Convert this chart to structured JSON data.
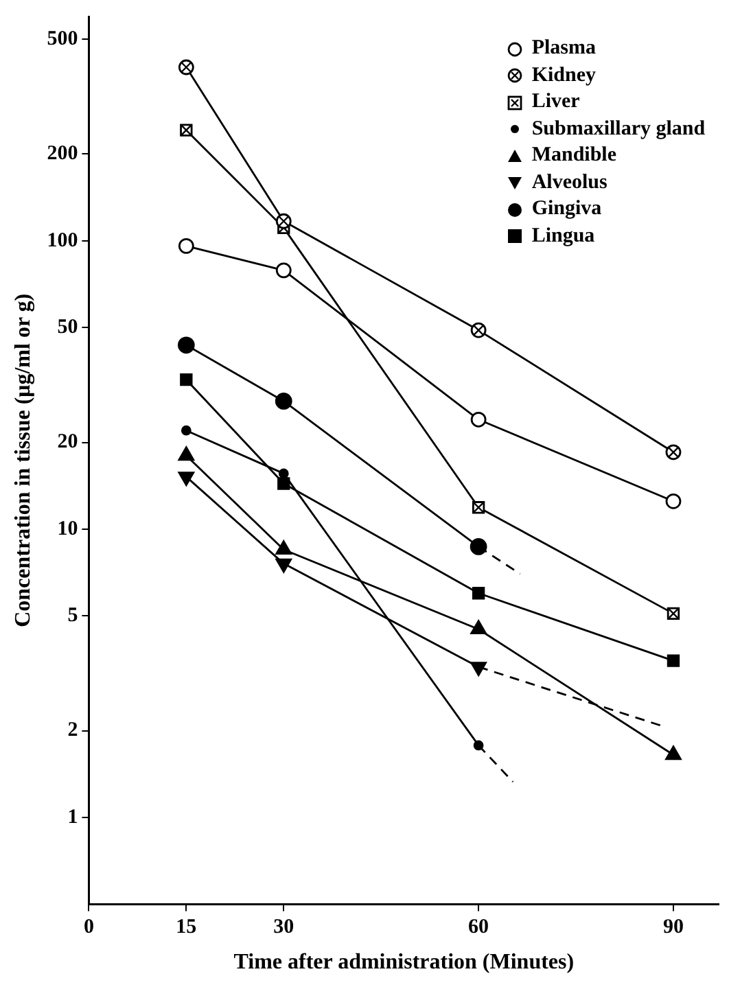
{
  "chart_data": {
    "type": "line",
    "xlabel": "Time after administration (Minutes)",
    "ylabel": "Concentration in tissue (μg/ml or g)",
    "x": [
      15,
      30,
      60,
      90
    ],
    "log": "y",
    "xlim": [
      0,
      97
    ],
    "xticks": [
      0,
      15,
      30,
      60,
      90
    ],
    "ylim": [
      0.5,
      600
    ],
    "yticks": [
      1,
      2,
      5,
      10,
      20,
      50,
      100,
      200,
      500
    ],
    "grid": false,
    "legend": "top right",
    "line_style": "solid",
    "series": [
      {
        "name": "Plasma",
        "color": "#000000",
        "marker": "circle-open",
        "values": [
          96,
          79,
          24,
          12.5
        ]
      },
      {
        "name": "Kidney",
        "color": "#000000",
        "marker": "circle-cross",
        "values": [
          400,
          117,
          49,
          18.5
        ]
      },
      {
        "name": "Liver",
        "color": "#000000",
        "marker": "square-cross",
        "values": [
          242,
          111,
          11.9,
          5.1
        ]
      },
      {
        "name": "Submaxillary gland",
        "color": "#000000",
        "marker": "circle-small",
        "values": [
          22,
          15.6,
          1.78,
          null
        ]
      },
      {
        "name": "Mandible",
        "color": "#000000",
        "marker": "triangle",
        "values": [
          18,
          8.5,
          4.5,
          1.65
        ]
      },
      {
        "name": "Alveolus",
        "color": "#000000",
        "marker": "triangle-down",
        "values": [
          15.2,
          7.6,
          3.33,
          null
        ]
      },
      {
        "name": "Gingiva",
        "color": "#000000",
        "marker": "circle",
        "values": [
          43.5,
          27.8,
          8.7,
          null
        ]
      },
      {
        "name": "Lingua",
        "color": "#000000",
        "marker": "square",
        "values": [
          33,
          14.4,
          6.0,
          3.5
        ]
      },
      {
        "color": "#000000",
        "x": [
          60,
          65.3
        ],
        "values": [
          1.78,
          1.33
        ],
        "marker": "none",
        "line_style": "dashed"
      },
      {
        "color": "#000000",
        "x": [
          60,
          66.4
        ],
        "values": [
          8.7,
          7.0
        ],
        "marker": "none",
        "line_style": "dashed"
      },
      {
        "color": "#000000",
        "x": [
          60,
          88.5
        ],
        "values": [
          3.33,
          2.07
        ],
        "marker": "none",
        "line_style": "dashed"
      }
    ]
  }
}
